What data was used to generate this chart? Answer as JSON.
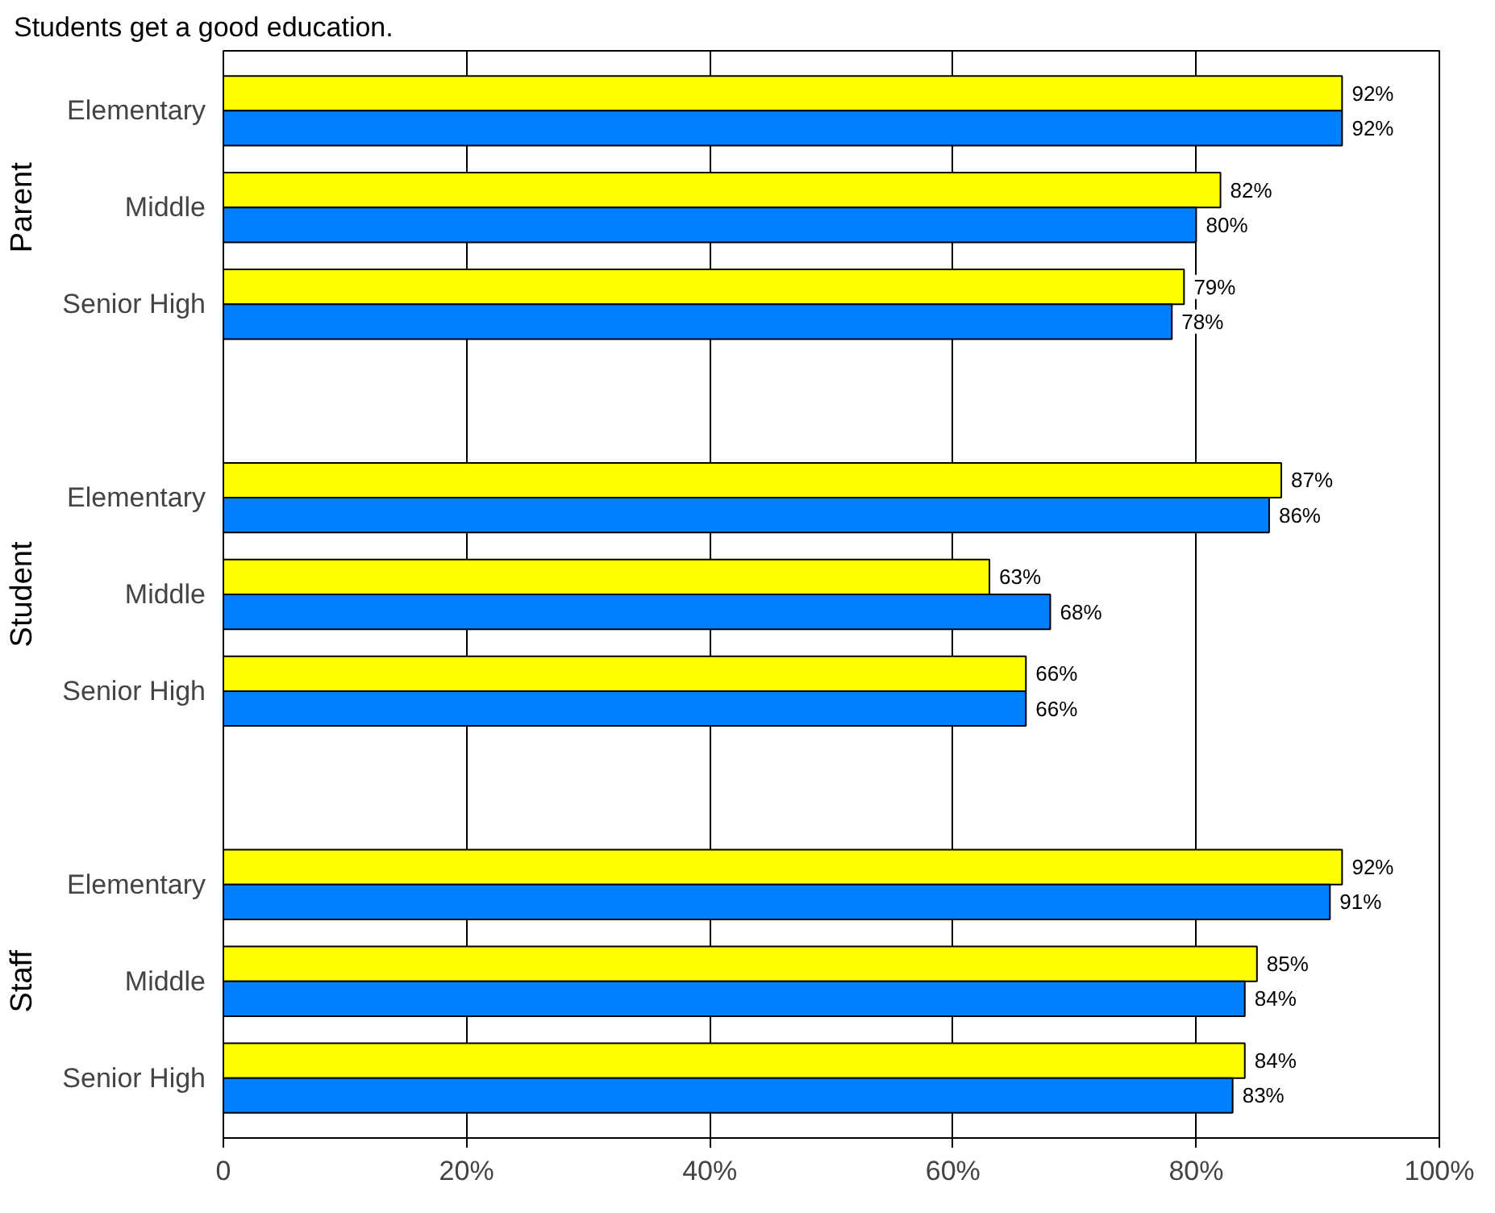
{
  "chart_data": {
    "type": "bar",
    "orientation": "horizontal",
    "title": "Students get a good education.",
    "categories": [
      "Elementary",
      "Middle",
      "Senior High",
      null,
      "Elementary",
      "Middle",
      "Senior High",
      null,
      "Elementary",
      "Middle",
      "Senior High"
    ],
    "series": [
      {
        "color": "#ffff00",
        "values": [
          92,
          82,
          79,
          null,
          87,
          63,
          66,
          null,
          92,
          85,
          84
        ],
        "value_labels": [
          "92%",
          "82%",
          "79%",
          null,
          "87%",
          "63%",
          "66%",
          null,
          "92%",
          "85%",
          "84%"
        ]
      },
      {
        "color": "#0080ff",
        "values": [
          92,
          80,
          78,
          null,
          86,
          68,
          66,
          null,
          91,
          84,
          83
        ],
        "value_labels": [
          "92%",
          "80%",
          "78%",
          null,
          "86%",
          "68%",
          "66%",
          null,
          "91%",
          "84%",
          "83%"
        ]
      }
    ],
    "annotations": [
      "Parent",
      "Student",
      "Staff"
    ],
    "xlim": [
      0,
      100
    ],
    "xticks": [
      0,
      {
        "value": 20,
        "label": "20%"
      },
      {
        "value": 40,
        "label": "40%"
      },
      {
        "value": 60,
        "label": "60%"
      },
      {
        "value": 80,
        "label": "80%"
      },
      {
        "value": 100,
        "label": "100%"
      }
    ],
    "grid": "x",
    "legend": false
  }
}
